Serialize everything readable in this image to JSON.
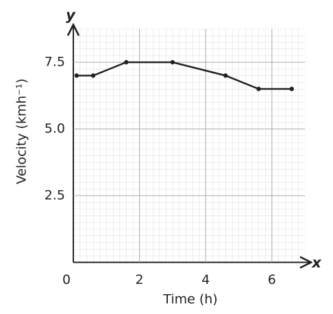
{
  "chart_data": {
    "type": "line",
    "x_label": "Time (h)",
    "y_label": "Velocity (kmh⁻¹)",
    "x_axis_letter": "x",
    "y_axis_letter": "y",
    "series": [
      {
        "color": "#222222",
        "x": [
          0.1,
          0.6,
          1.6,
          3.0,
          4.6,
          5.6,
          6.6
        ],
        "values": [
          7,
          7,
          7.5,
          7.5,
          7,
          6.5,
          6.5
        ]
      }
    ],
    "xlim": [
      0,
      7
    ],
    "ylim": [
      0,
      8.75
    ],
    "xticks": [
      0,
      2,
      4,
      6
    ],
    "yticks": [
      2.5,
      {
        "value": 5,
        "label": "5.0"
      },
      7.5
    ],
    "grid": true
  }
}
